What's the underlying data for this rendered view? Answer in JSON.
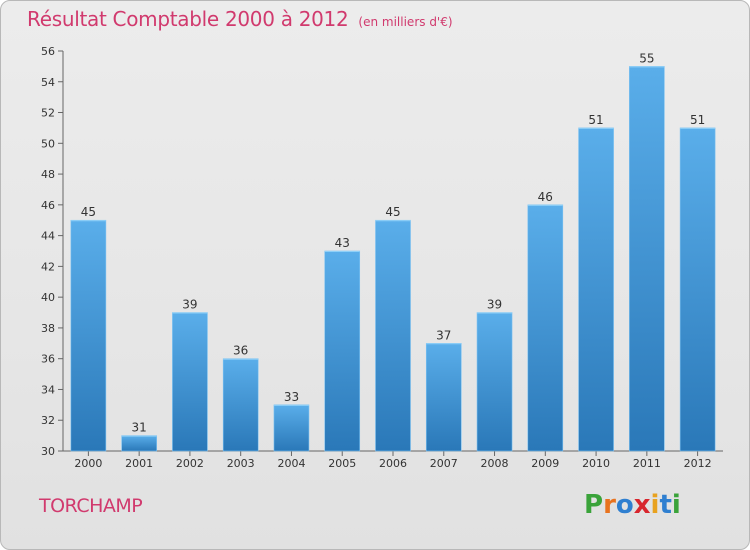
{
  "header": {
    "title": "Résultat Comptable 2000 à 2012",
    "subtitle": "(en milliers d'€)"
  },
  "footer": {
    "commune": "TORCHAMP",
    "logo_letters": [
      "P",
      "r",
      "o",
      "x",
      "i",
      "t",
      "i"
    ],
    "logo_colors": [
      "#3aa33a",
      "#e8731f",
      "#2f7fd0",
      "#d8262e",
      "#e8a21f",
      "#2f7fd0",
      "#3aa33a"
    ]
  },
  "colors": {
    "bar_light": "#5aaeea",
    "bar_dark": "#2a78b8",
    "title": "#d13a6e"
  },
  "chart_data": {
    "type": "bar",
    "title": "Résultat Comptable 2000 à 2012",
    "subtitle": "(en milliers d'€)",
    "categories": [
      "2000",
      "2001",
      "2002",
      "2003",
      "2004",
      "2005",
      "2006",
      "2007",
      "2008",
      "2009",
      "2010",
      "2011",
      "2012"
    ],
    "values": [
      45,
      31,
      39,
      36,
      33,
      43,
      45,
      37,
      39,
      46,
      51,
      55,
      51
    ],
    "value_labels": [
      "45",
      "31",
      "39",
      "36",
      "33",
      "43",
      "45",
      "37",
      "39",
      "46",
      "51",
      "55",
      "51"
    ],
    "ylim": [
      30,
      56
    ],
    "yticks": [
      30,
      32,
      34,
      36,
      38,
      40,
      42,
      44,
      46,
      48,
      50,
      52,
      54,
      56
    ],
    "ytick_labels": [
      "30",
      "32",
      "34",
      "36",
      "38",
      "40",
      "42",
      "44",
      "46",
      "48",
      "50",
      "52",
      "54",
      "56"
    ],
    "grid": false,
    "legend": "none"
  }
}
